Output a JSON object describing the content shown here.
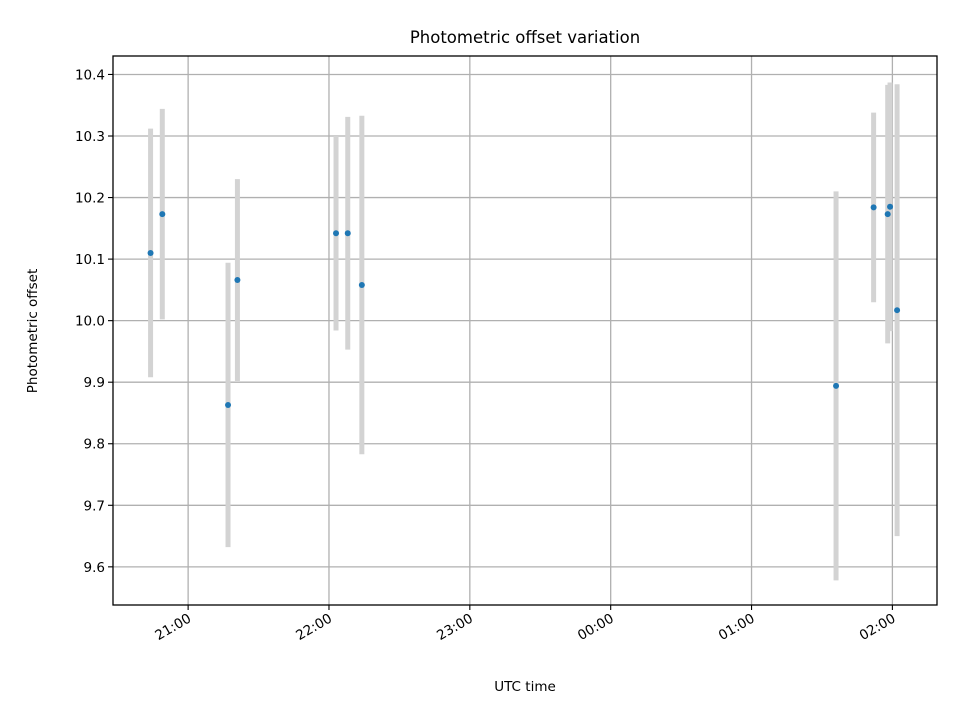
{
  "chart_data": {
    "type": "scatter",
    "title": "Photometric offset variation",
    "xlabel": "UTC time",
    "ylabel": "Photometric offset",
    "x_unit": "UTC time (HH:MM), night crossing midnight",
    "xlim": [
      "20:28",
      "02:19"
    ],
    "ylim": [
      9.538,
      10.43
    ],
    "x_ticks": [
      "21:00",
      "22:00",
      "23:00",
      "00:00",
      "01:00",
      "02:00"
    ],
    "y_ticks": [
      "9.6",
      "9.7",
      "9.8",
      "9.9",
      "10.0",
      "10.1",
      "10.2",
      "10.3",
      "10.4"
    ],
    "grid": true,
    "points": [
      {
        "x": "20:44",
        "y": 10.11,
        "yerr_low": 9.908,
        "yerr_high": 10.312
      },
      {
        "x": "20:49",
        "y": 10.173,
        "yerr_low": 10.002,
        "yerr_high": 10.344
      },
      {
        "x": "21:17",
        "y": 9.863,
        "yerr_low": 9.632,
        "yerr_high": 10.094
      },
      {
        "x": "21:21",
        "y": 10.066,
        "yerr_low": 9.902,
        "yerr_high": 10.23
      },
      {
        "x": "22:03",
        "y": 10.142,
        "yerr_low": 9.984,
        "yerr_high": 10.3
      },
      {
        "x": "22:08",
        "y": 10.142,
        "yerr_low": 9.953,
        "yerr_high": 10.331
      },
      {
        "x": "22:14",
        "y": 10.058,
        "yerr_low": 9.783,
        "yerr_high": 10.333
      },
      {
        "x": "01:36",
        "y": 9.894,
        "yerr_low": 9.578,
        "yerr_high": 10.21
      },
      {
        "x": "01:52",
        "y": 10.184,
        "yerr_low": 10.03,
        "yerr_high": 10.338
      },
      {
        "x": "01:58",
        "y": 10.173,
        "yerr_low": 9.963,
        "yerr_high": 10.383
      },
      {
        "x": "01:59",
        "y": 10.185,
        "yerr_low": 9.983,
        "yerr_high": 10.387
      },
      {
        "x": "02:02",
        "y": 10.017,
        "yerr_low": 9.65,
        "yerr_high": 10.384
      }
    ],
    "colors": {
      "marker": "#1f77b4",
      "errorbar": "#d3d3d3",
      "grid": "#b0b0b0",
      "axes": "#000000"
    }
  }
}
